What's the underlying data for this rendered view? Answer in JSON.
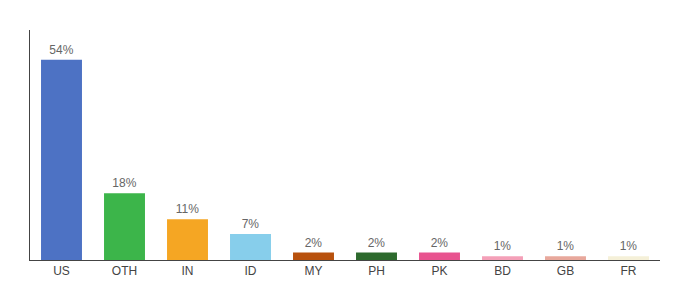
{
  "chart_data": {
    "type": "bar",
    "categories": [
      "US",
      "OTH",
      "IN",
      "ID",
      "MY",
      "PH",
      "PK",
      "BD",
      "GB",
      "FR"
    ],
    "values": [
      54,
      18,
      11,
      7,
      2,
      2,
      2,
      1,
      1,
      1
    ],
    "value_labels": [
      "54%",
      "18%",
      "11%",
      "7%",
      "2%",
      "2%",
      "2%",
      "1%",
      "1%",
      "1%"
    ],
    "colors": [
      "#4d72c4",
      "#3cb54a",
      "#f5a623",
      "#87ceeb",
      "#b8510d",
      "#2d6a2d",
      "#e8538f",
      "#f4a0b8",
      "#e8a89c",
      "#f5f0d8"
    ],
    "ylim": [
      0,
      62
    ],
    "data_labels": true,
    "tick_labels": "x",
    "grid": false
  }
}
